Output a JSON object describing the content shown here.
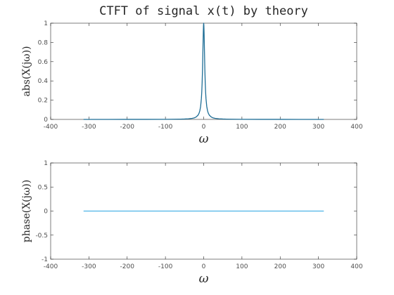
{
  "chart_data": [
    {
      "type": "line",
      "title": "CTFT of signal x(t) by theory",
      "xlabel": "ω",
      "ylabel": "abs(X(jω))",
      "xlim": [
        -400,
        400
      ],
      "ylim": [
        0,
        1
      ],
      "xticks": [
        "-400",
        "-300",
        "-200",
        "-100",
        "0",
        "100",
        "200",
        "300",
        "400"
      ],
      "yticks": [
        "0",
        "0.2",
        "0.4",
        "0.6",
        "0.8",
        "1"
      ],
      "color": "#1f6e96",
      "series": [
        {
          "x": [
            -314,
            -250,
            -200,
            -150,
            -100,
            -80,
            -60,
            -50,
            -40,
            -30,
            -25,
            -20,
            -15,
            -12,
            -10,
            -8,
            -6,
            -5,
            -4,
            -3,
            -2,
            -1.5,
            -1,
            -0.5,
            0,
            0.5,
            1,
            1.5,
            2,
            3,
            4,
            5,
            6,
            8,
            10,
            12,
            15,
            20,
            25,
            30,
            40,
            50,
            60,
            80,
            100,
            150,
            200,
            250,
            314
          ],
          "y": [
            0.0001,
            0.0002,
            0.0003,
            0.0004,
            0.001,
            0.0016,
            0.0028,
            0.004,
            0.0062,
            0.011,
            0.0157,
            0.0244,
            0.0426,
            0.0649,
            0.0909,
            0.1351,
            0.2174,
            0.2857,
            0.3846,
            0.5263,
            0.7143,
            0.8163,
            0.9091,
            0.9756,
            1.0,
            0.9756,
            0.9091,
            0.8163,
            0.7143,
            0.5263,
            0.3846,
            0.2857,
            0.2174,
            0.1351,
            0.0909,
            0.0649,
            0.0426,
            0.0244,
            0.0157,
            0.011,
            0.0062,
            0.004,
            0.0028,
            0.0016,
            0.001,
            0.0004,
            0.0003,
            0.0002,
            0.0001
          ]
        }
      ]
    },
    {
      "type": "line",
      "title": "",
      "xlabel": "ω",
      "ylabel": "phase(X(jω))",
      "xlim": [
        -400,
        400
      ],
      "ylim": [
        -1,
        1
      ],
      "xticks": [
        "-400",
        "-300",
        "-200",
        "-100",
        "0",
        "100",
        "200",
        "300",
        "400"
      ],
      "yticks": [
        "-1",
        "-0.5",
        "0",
        "0.5",
        "1"
      ],
      "color": "#4db3e6",
      "series": [
        {
          "x": [
            -314,
            314
          ],
          "y": [
            0,
            0
          ]
        }
      ]
    }
  ]
}
